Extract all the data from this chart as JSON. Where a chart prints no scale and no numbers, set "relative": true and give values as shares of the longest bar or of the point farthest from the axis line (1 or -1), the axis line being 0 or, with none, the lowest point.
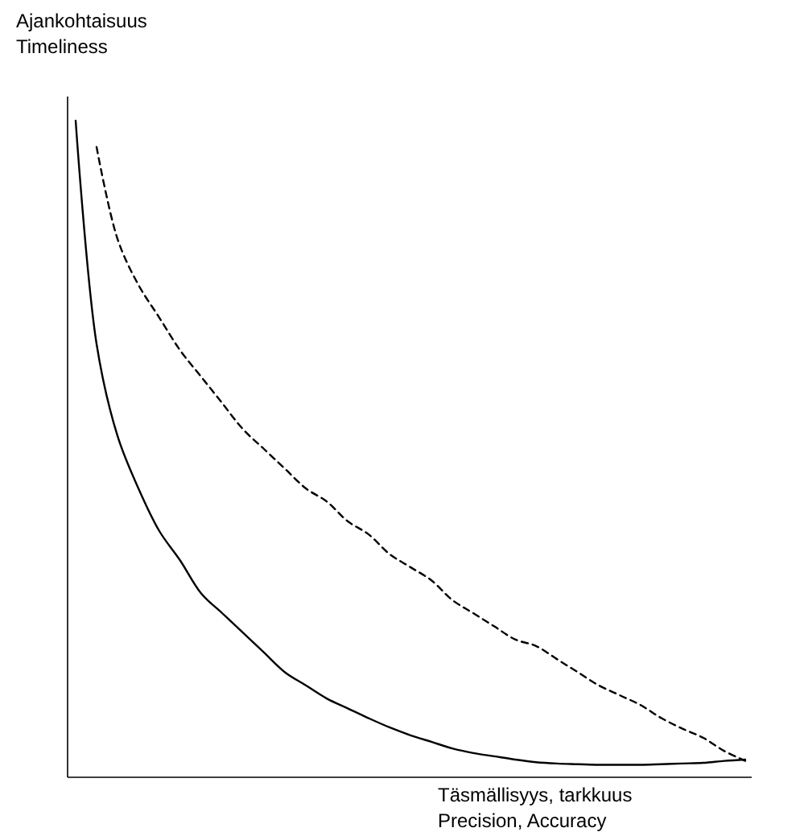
{
  "chart_data": {
    "type": "line",
    "relative": true,
    "xlabel": "Täsmällisyys, tarkkuus\nPrecision, Accuracy",
    "ylabel": "Ajankohtaisuus\nTimeliness",
    "categories": [
      null,
      null,
      null,
      null,
      null,
      null,
      null,
      null,
      null,
      null,
      null,
      null,
      null,
      null,
      null,
      null,
      null,
      null,
      null,
      null,
      null,
      null,
      null,
      null,
      null,
      null,
      null,
      null,
      null,
      null,
      null,
      null,
      null
    ],
    "series": [
      {
        "color": "#000000",
        "line_style": "solid",
        "values": [
          1,
          0.66,
          0.52,
          0.44,
          0.375,
          0.33,
          0.28,
          0.25,
          0.22,
          0.19,
          0.16,
          0.14,
          0.12,
          0.105,
          0.09,
          0.076,
          0.064,
          0.054,
          0.044,
          0.037,
          0.032,
          0.027,
          0.023,
          0.021,
          0.02,
          0.019,
          0.019,
          0.019,
          0.02,
          0.021,
          0.022,
          0.025,
          0.027
        ]
      },
      {
        "color": "#000000",
        "line_style": "dashed",
        "values": [
          null,
          0.96,
          0.82,
          0.75,
          0.7,
          0.65,
          0.61,
          0.57,
          0.53,
          0.5,
          0.47,
          0.44,
          0.42,
          0.39,
          0.37,
          0.34,
          0.32,
          0.3,
          0.27,
          0.25,
          0.23,
          0.21,
          0.2,
          0.18,
          0.16,
          0.14,
          0.125,
          0.11,
          0.09,
          0.074,
          0.06,
          0.04,
          0.025
        ]
      }
    ]
  }
}
